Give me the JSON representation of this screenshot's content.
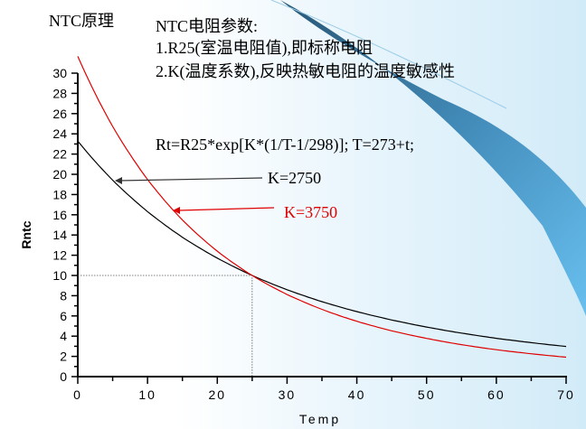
{
  "slide": {
    "title": "NTC原理",
    "params_heading": "NTC电阻参数:",
    "param_1": "1.R25(室温电阻值),即标称电阻",
    "param_2": "2.K(温度系数),反映热敏电阻的温度敏感性",
    "formula": "Rt=R25*exp[K*(1/T-1/298)];  T=273+t;"
  },
  "colors": {
    "accent_swoosh": "#2e6e96",
    "swoosh_light": "#5ab4e6",
    "red_series": "#e00000",
    "black_series": "#000000"
  },
  "chart_data": {
    "type": "line",
    "title": "",
    "xlabel": "Temp",
    "ylabel": "Rntc",
    "xlim": [
      0,
      70
    ],
    "ylim": [
      0,
      30
    ],
    "x_ticks": [
      "0",
      "10",
      "20",
      "30",
      "40",
      "50",
      "60",
      "70"
    ],
    "y_ticks": [
      "0",
      "2",
      "4",
      "6",
      "8",
      "10",
      "12",
      "14",
      "16",
      "18",
      "20",
      "22",
      "24",
      "26",
      "28",
      "30"
    ],
    "grid": false,
    "x": [
      0,
      5,
      10,
      15,
      20,
      25,
      30,
      35,
      40,
      45,
      50,
      55,
      60,
      65,
      70
    ],
    "series": [
      {
        "name": "K=2750",
        "color": "#000000",
        "values": [
          23.28,
          19.42,
          16.31,
          13.78,
          11.71,
          10,
          8.59,
          7.41,
          6.43,
          5.6,
          4.9,
          4.3,
          3.79,
          3.36,
          2.98
        ]
      },
      {
        "name": "K=3750",
        "color": "#e00000",
        "values": [
          31.66,
          24.73,
          19.49,
          15.48,
          12.4,
          10,
          8.12,
          6.65,
          5.47,
          4.53,
          3.78,
          3.16,
          2.66,
          2.26,
          1.92
        ]
      }
    ],
    "reference_point": {
      "x": 25,
      "y": 10
    },
    "annotations": [
      {
        "text": "K=2750",
        "points_to": {
          "x": 5,
          "y": 19.4
        }
      },
      {
        "text": "K=3750",
        "points_to": {
          "x": 14,
          "y": 16.3
        }
      }
    ]
  }
}
